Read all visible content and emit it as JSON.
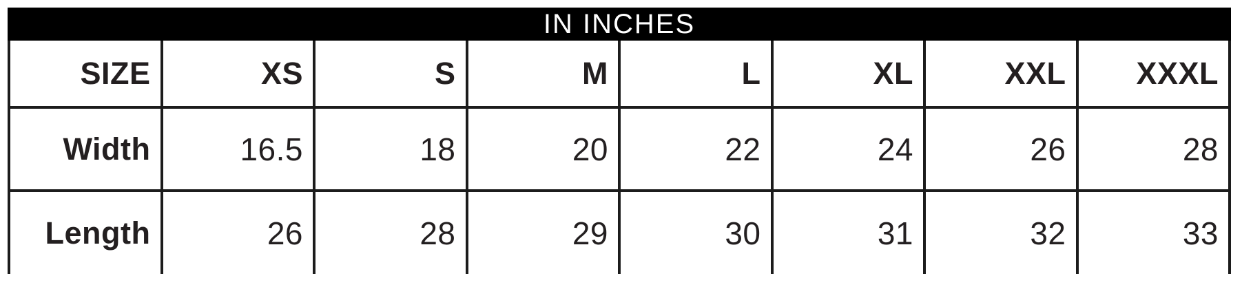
{
  "chart_data": {
    "type": "table",
    "title": "IN INCHES",
    "columns": [
      "SIZE",
      "XS",
      "S",
      "M",
      "L",
      "XL",
      "XXL",
      "XXXL"
    ],
    "rows": [
      {
        "label": "Width",
        "values": [
          "16.5",
          "18",
          "20",
          "22",
          "24",
          "26",
          "28"
        ]
      },
      {
        "label": "Length",
        "values": [
          "26",
          "28",
          "29",
          "30",
          "31",
          "32",
          "33"
        ]
      }
    ],
    "layout": {
      "title_position": "top-banner",
      "grid": true,
      "bottom_border": false
    },
    "colors": {
      "title_bg": "#000000",
      "title_text": "#ffffff",
      "border": "#1c1c1c",
      "text": "#231f20",
      "background": "#ffffff"
    }
  }
}
